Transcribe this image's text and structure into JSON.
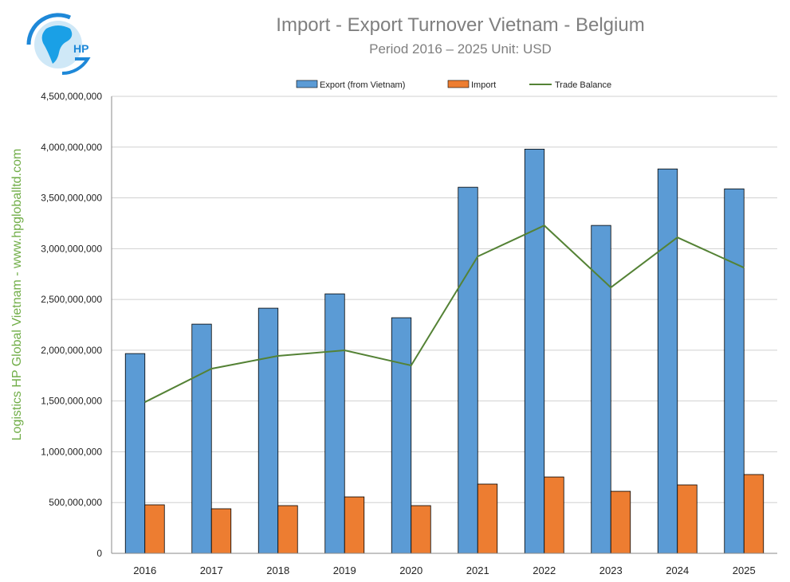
{
  "logo": {
    "text": "HP",
    "colors": [
      "#1e88d8",
      "#2aa8e8"
    ]
  },
  "side_label": "Logistics HP Global Vietnam - www.hpgloballtd.com",
  "chart_data": {
    "type": "bar",
    "title": "Import - Export Turnover Vietnam - Belgium",
    "subtitle": "Period 2016 – 2025  Unit: USD",
    "categories": [
      "2016",
      "2017",
      "2018",
      "2019",
      "2020",
      "2021",
      "2022",
      "2023",
      "2024",
      "2025"
    ],
    "series": [
      {
        "name": "Export (from Vietnam)",
        "type": "bar",
        "color": "#5b9bd5",
        "values": [
          1967000000,
          2257000000,
          2414000000,
          2555000000,
          2320000000,
          3605000000,
          3980000000,
          3229000000,
          3785000000,
          3589000000
        ]
      },
      {
        "name": "Import",
        "type": "bar",
        "color": "#ed7d31",
        "values": [
          478000000,
          439000000,
          470000000,
          556000000,
          470000000,
          682000000,
          752000000,
          611000000,
          674000000,
          776000000
        ]
      },
      {
        "name": "Trade Balance",
        "type": "line",
        "color": "#548235",
        "values": [
          1489000000,
          1818000000,
          1944000000,
          1999000000,
          1850000000,
          2923000000,
          3228000000,
          2618000000,
          3111000000,
          2813000000
        ]
      }
    ],
    "ylim": [
      0,
      4500000000
    ],
    "yticks": [
      "0",
      "500,000,000",
      "1,000,000,000",
      "1,500,000,000",
      "2,000,000,000",
      "2,500,000,000",
      "3,000,000,000",
      "3,500,000,000",
      "4,000,000,000",
      "4,500,000,000"
    ],
    "grid": true,
    "legend": "top"
  }
}
